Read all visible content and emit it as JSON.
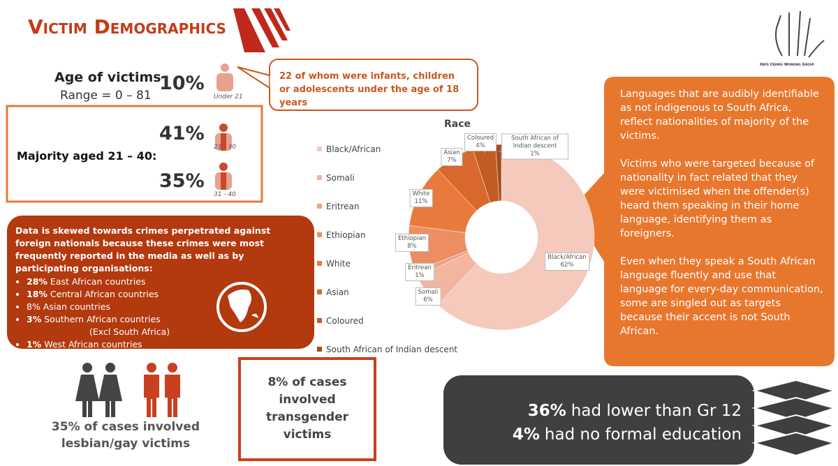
{
  "header": {
    "title": "Victim Demographics",
    "logo_text": "Hate Crimes Working Group"
  },
  "age": {
    "heading": "Age of victims",
    "range": "Range = 0 – 81",
    "under21": {
      "value": "10%",
      "label": "Under 21"
    },
    "callout": "22 of whom were infants, children or adolescents under the age of 18 years",
    "majority": "Majority  aged 21 – 40:",
    "groups": [
      {
        "value": "41%",
        "label": "21 - 30"
      },
      {
        "value": "35%",
        "label": "31 - 40"
      }
    ]
  },
  "nationality": {
    "intro": "Data is skewed towards crimes perpetrated against foreign nationals because these crimes were most frequently reported in the media as well as by participating organisations:",
    "items": [
      {
        "bold": "28%",
        "text": "East African countries"
      },
      {
        "bold": "18%",
        "text": "Central African countries"
      },
      {
        "text": "8% Asian countries"
      },
      {
        "bold": "3%",
        "text": "Southern  African countries"
      },
      {
        "text": "(Excl South Africa)"
      },
      {
        "bold": "1%",
        "text": "West African countries"
      }
    ]
  },
  "chart_data": {
    "type": "donut",
    "title": "Race",
    "categories": [
      "Black/African",
      "Somali",
      "Eritrean",
      "Ethiopian",
      "White",
      "Asian",
      "Coloured",
      "South African of Indian descent"
    ],
    "values": [
      62,
      6,
      1,
      8,
      11,
      7,
      4,
      1
    ],
    "value_labels": [
      "62%",
      "6%",
      "1%",
      "8%",
      "11%",
      "7%",
      "4%",
      "1%"
    ],
    "colors": [
      "#f5c9bb",
      "#f2b59f",
      "#efa283",
      "#ec8e62",
      "#e97a3e",
      "#d8682c",
      "#c25b25",
      "#a24c1d"
    ],
    "legend": "left"
  },
  "languages": {
    "paragraphs": [
      "Languages that are audibly identifiable as not indigenous to South Africa, reflect nationalities of majority of the victims.",
      "Victims who were targeted because of nationality in fact related that they were victimised when the offender(s) heard them speaking in their home language, identifying them as foreigners.",
      "Even when they speak a South African language fluently and use that language for every-day communication, some are singled out as targets because their accent is not South African."
    ]
  },
  "orientation": {
    "text": "35% of cases involved lesbian/gay victims"
  },
  "transgender": {
    "text": "8% of cases involved transgender victims"
  },
  "education": [
    {
      "bold": "36%",
      "text": "had lower than Gr 12"
    },
    {
      "bold": "4%",
      "text": "had no formal education"
    }
  ]
}
